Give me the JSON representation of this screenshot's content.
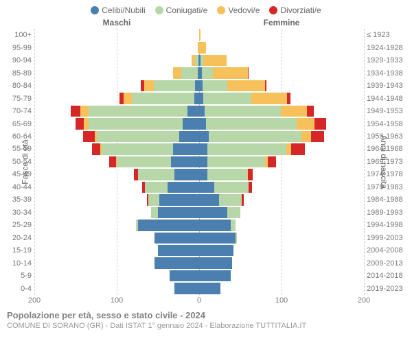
{
  "legend": [
    {
      "label": "Celibi/Nubili",
      "color": "#4a7fb0"
    },
    {
      "label": "Coniugati/e",
      "color": "#b7d7a8"
    },
    {
      "label": "Vedovi/e",
      "color": "#f6c15b"
    },
    {
      "label": "Divorziati/e",
      "color": "#d62728"
    }
  ],
  "headers": {
    "male": "Maschi",
    "female": "Femmine"
  },
  "axis_left_label": "Fasce di età",
  "axis_right_label": "Anni di nascita",
  "axis_right_top": "≤ 1923",
  "x_ticks": [
    -200,
    -100,
    0,
    100,
    200
  ],
  "x_max": 200,
  "colors": {
    "single": "#4a7fb0",
    "married": "#b7d7a8",
    "widowed": "#f6c15b",
    "divorced": "#d62728",
    "grid": "#d0d0d0",
    "bg": "#ffffff"
  },
  "groups": [
    {
      "age": "100+",
      "birth": "≤ 1923",
      "m": {
        "s": 0,
        "c": 0,
        "w": 0,
        "d": 0
      },
      "f": {
        "s": 0,
        "c": 0,
        "w": 2,
        "d": 0
      }
    },
    {
      "age": "95-99",
      "birth": "1924-1928",
      "m": {
        "s": 0,
        "c": 0,
        "w": 2,
        "d": 0
      },
      "f": {
        "s": 0,
        "c": 0,
        "w": 8,
        "d": 0
      }
    },
    {
      "age": "90-94",
      "birth": "1929-1933",
      "m": {
        "s": 1,
        "c": 4,
        "w": 4,
        "d": 0
      },
      "f": {
        "s": 2,
        "c": 3,
        "w": 28,
        "d": 0
      }
    },
    {
      "age": "85-89",
      "birth": "1934-1938",
      "m": {
        "s": 2,
        "c": 20,
        "w": 10,
        "d": 0
      },
      "f": {
        "s": 3,
        "c": 14,
        "w": 42,
        "d": 1
      }
    },
    {
      "age": "80-84",
      "birth": "1939-1943",
      "m": {
        "s": 5,
        "c": 50,
        "w": 12,
        "d": 4
      },
      "f": {
        "s": 4,
        "c": 30,
        "w": 46,
        "d": 2
      }
    },
    {
      "age": "75-79",
      "birth": "1944-1948",
      "m": {
        "s": 6,
        "c": 76,
        "w": 10,
        "d": 5
      },
      "f": {
        "s": 5,
        "c": 58,
        "w": 44,
        "d": 4
      }
    },
    {
      "age": "70-74",
      "birth": "1949-1953",
      "m": {
        "s": 14,
        "c": 120,
        "w": 10,
        "d": 12
      },
      "f": {
        "s": 7,
        "c": 92,
        "w": 32,
        "d": 8
      }
    },
    {
      "age": "65-69",
      "birth": "1954-1958",
      "m": {
        "s": 20,
        "c": 114,
        "w": 6,
        "d": 10
      },
      "f": {
        "s": 8,
        "c": 110,
        "w": 22,
        "d": 14
      }
    },
    {
      "age": "60-64",
      "birth": "1959-1963",
      "m": {
        "s": 24,
        "c": 100,
        "w": 3,
        "d": 14
      },
      "f": {
        "s": 12,
        "c": 112,
        "w": 12,
        "d": 16
      }
    },
    {
      "age": "55-59",
      "birth": "1964-1968",
      "m": {
        "s": 32,
        "c": 86,
        "w": 2,
        "d": 10
      },
      "f": {
        "s": 10,
        "c": 96,
        "w": 6,
        "d": 16
      }
    },
    {
      "age": "50-54",
      "birth": "1969-1973",
      "m": {
        "s": 34,
        "c": 66,
        "w": 1,
        "d": 8
      },
      "f": {
        "s": 10,
        "c": 70,
        "w": 3,
        "d": 10
      }
    },
    {
      "age": "45-49",
      "birth": "1974-1978",
      "m": {
        "s": 30,
        "c": 44,
        "w": 0,
        "d": 5
      },
      "f": {
        "s": 10,
        "c": 48,
        "w": 1,
        "d": 6
      }
    },
    {
      "age": "40-44",
      "birth": "1979-1983",
      "m": {
        "s": 38,
        "c": 28,
        "w": 0,
        "d": 3
      },
      "f": {
        "s": 18,
        "c": 42,
        "w": 0,
        "d": 4
      }
    },
    {
      "age": "35-39",
      "birth": "1984-1988",
      "m": {
        "s": 48,
        "c": 14,
        "w": 0,
        "d": 1
      },
      "f": {
        "s": 24,
        "c": 28,
        "w": 0,
        "d": 2
      }
    },
    {
      "age": "30-34",
      "birth": "1989-1993",
      "m": {
        "s": 50,
        "c": 8,
        "w": 0,
        "d": 0
      },
      "f": {
        "s": 34,
        "c": 16,
        "w": 0,
        "d": 0
      }
    },
    {
      "age": "25-29",
      "birth": "1994-1998",
      "m": {
        "s": 74,
        "c": 3,
        "w": 0,
        "d": 0
      },
      "f": {
        "s": 38,
        "c": 6,
        "w": 0,
        "d": 0
      }
    },
    {
      "age": "20-24",
      "birth": "1999-2003",
      "m": {
        "s": 54,
        "c": 0,
        "w": 0,
        "d": 0
      },
      "f": {
        "s": 44,
        "c": 2,
        "w": 0,
        "d": 0
      }
    },
    {
      "age": "15-19",
      "birth": "2004-2008",
      "m": {
        "s": 50,
        "c": 0,
        "w": 0,
        "d": 0
      },
      "f": {
        "s": 42,
        "c": 0,
        "w": 0,
        "d": 0
      }
    },
    {
      "age": "10-14",
      "birth": "2009-2013",
      "m": {
        "s": 54,
        "c": 0,
        "w": 0,
        "d": 0
      },
      "f": {
        "s": 40,
        "c": 0,
        "w": 0,
        "d": 0
      }
    },
    {
      "age": "5-9",
      "birth": "2014-2018",
      "m": {
        "s": 36,
        "c": 0,
        "w": 0,
        "d": 0
      },
      "f": {
        "s": 38,
        "c": 0,
        "w": 0,
        "d": 0
      }
    },
    {
      "age": "0-4",
      "birth": "2019-2023",
      "m": {
        "s": 30,
        "c": 0,
        "w": 0,
        "d": 0
      },
      "f": {
        "s": 26,
        "c": 0,
        "w": 0,
        "d": 0
      }
    }
  ],
  "footer": {
    "title": "Popolazione per età, sesso e stato civile - 2024",
    "sub": "COMUNE DI SORANO (GR) - Dati ISTAT 1° gennaio 2024 - Elaborazione TUTTITALIA.IT"
  }
}
